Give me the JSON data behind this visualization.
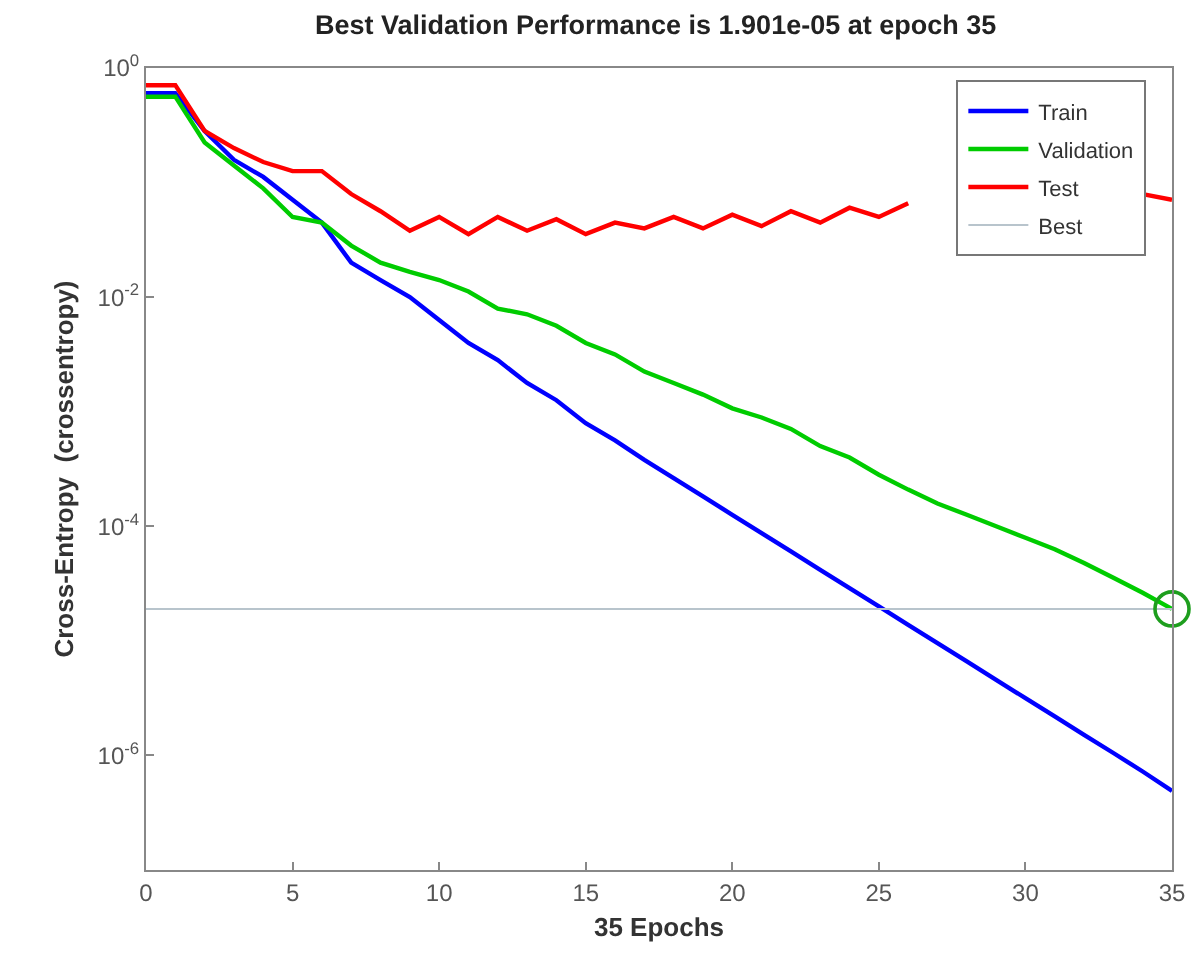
{
  "chart_data": {
    "type": "line",
    "title": "Best Validation Performance is 1.901e-05 at epoch 35",
    "xlabel": "35 Epochs",
    "ylabel": "Cross-Entropy  (crossentropy)",
    "x": [
      0,
      1,
      2,
      3,
      4,
      5,
      6,
      7,
      8,
      9,
      10,
      11,
      12,
      13,
      14,
      15,
      16,
      17,
      18,
      19,
      20,
      21,
      22,
      23,
      24,
      25,
      26,
      27,
      28,
      29,
      30,
      31,
      32,
      33,
      34,
      35
    ],
    "series": [
      {
        "name": "Train",
        "color": "#0000ff",
        "values": [
          0.603,
          0.603,
          0.282,
          0.158,
          0.112,
          0.0708,
          0.0447,
          0.02,
          0.0141,
          0.01,
          0.00631,
          0.00398,
          0.00282,
          0.00178,
          0.00126,
          0.000794,
          0.000562,
          0.00038,
          0.000263,
          0.000182,
          0.000126,
          8.71e-05,
          6.03e-05,
          4.17e-05,
          2.88e-05,
          2e-05,
          1.38e-05,
          9.55e-06,
          6.61e-06,
          4.57e-06,
          3.16e-06,
          2.19e-06,
          1.51e-06,
          1.05e-06,
          7.24e-07,
          4.9e-07
        ]
      },
      {
        "name": "Validation",
        "color": "#00cc00",
        "values": [
          0.562,
          0.562,
          0.224,
          0.141,
          0.0891,
          0.0501,
          0.0447,
          0.0282,
          0.02,
          0.0166,
          0.0141,
          0.0112,
          0.00794,
          0.00708,
          0.00562,
          0.00398,
          0.00316,
          0.00224,
          0.00178,
          0.00141,
          0.00107,
          0.000891,
          0.000708,
          0.000501,
          0.000398,
          0.000282,
          0.000209,
          0.000158,
          0.000126,
          0.0001,
          7.94e-05,
          6.31e-05,
          4.79e-05,
          3.55e-05,
          2.63e-05,
          1.901e-05
        ]
      },
      {
        "name": "Test",
        "color": "#ff0000",
        "values": [
          0.708,
          0.708,
          0.282,
          0.2,
          0.151,
          0.126,
          0.126,
          0.0794,
          0.0562,
          0.038,
          0.0501,
          0.0355,
          0.0501,
          0.038,
          0.0479,
          0.0355,
          0.0447,
          0.0398,
          0.0501,
          0.0398,
          0.0525,
          0.0417,
          0.0562,
          0.0447,
          0.0603,
          0.0501,
          0.0661,
          null,
          null,
          null,
          null,
          null,
          null,
          null,
          0.0794,
          0.0708
        ]
      },
      {
        "type": "scatter",
        "color": "#1e9e1e",
        "marker": "circle",
        "x": [
          35
        ],
        "values": [
          1.901e-05
        ]
      }
    ],
    "ref_lines": [
      {
        "axis": "y",
        "value": 1.901e-05,
        "label": "Best",
        "color": "#b8c4cc"
      }
    ],
    "log": true,
    "xlim": [
      0,
      35
    ],
    "xticks": [
      0,
      5,
      10,
      15,
      20,
      25,
      30,
      35
    ],
    "ylim": [
      1e-07,
      1
    ],
    "yticks": [
      {
        "value": 1,
        "label": "10$^{0}$"
      },
      {
        "value": 0.01,
        "label": "10$^{-2}$"
      },
      {
        "value": 0.0001,
        "label": "10$^{-4}$"
      },
      {
        "value": 1e-06,
        "label": "10$^{-6}$"
      }
    ],
    "grid": false,
    "legend": "top right",
    "line_style": "solid"
  }
}
